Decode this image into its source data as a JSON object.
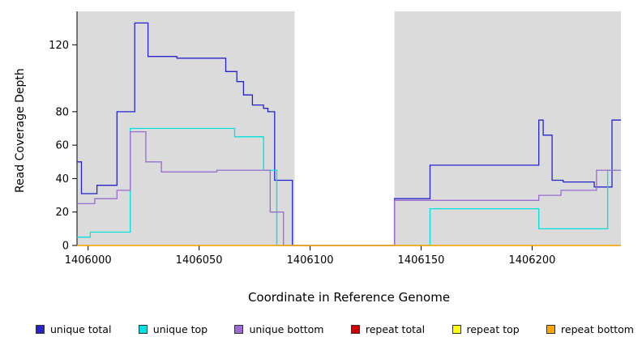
{
  "figure": {
    "y_axis_label": "Read Coverage Depth",
    "x_axis_label": "Coordinate in Reference Genome"
  },
  "legend": {
    "items": [
      {
        "label": "unique total",
        "color": "#2424CC"
      },
      {
        "label": "unique top",
        "color": "#00E0E0"
      },
      {
        "label": "unique bottom",
        "color": "#9A6BD0"
      },
      {
        "label": "repeat total",
        "color": "#CC0000"
      },
      {
        "label": "repeat top",
        "color": "#FFFF00"
      },
      {
        "label": "repeat bottom",
        "color": "#FFA500"
      }
    ]
  },
  "chart_data": {
    "type": "line",
    "title": "",
    "xlabel": "Coordinate in Reference Genome",
    "ylabel": "Read Coverage Depth",
    "xlim": [
      1405995,
      1406240
    ],
    "ylim": [
      0,
      140
    ],
    "x_ticks": [
      1406000,
      1406050,
      1406100,
      1406150,
      1406200
    ],
    "y_ticks": [
      0,
      20,
      40,
      60,
      80,
      120
    ],
    "grid": false,
    "legend_position": "bottom",
    "plot_background": "#DBDBDB",
    "gap_region": {
      "x_start": 1406093,
      "x_end": 1406138,
      "color": "#FFFFFF"
    },
    "series": [
      {
        "name": "unique total",
        "color": "#2424CC",
        "points": [
          [
            1405995,
            50
          ],
          [
            1405997,
            50
          ],
          [
            1405997,
            31
          ],
          [
            1406004,
            31
          ],
          [
            1406004,
            36
          ],
          [
            1406013,
            36
          ],
          [
            1406013,
            80
          ],
          [
            1406021,
            80
          ],
          [
            1406021,
            133
          ],
          [
            1406027,
            133
          ],
          [
            1406027,
            113
          ],
          [
            1406040,
            113
          ],
          [
            1406040,
            112
          ],
          [
            1406062,
            112
          ],
          [
            1406062,
            104
          ],
          [
            1406067,
            104
          ],
          [
            1406067,
            98
          ],
          [
            1406070,
            98
          ],
          [
            1406070,
            90
          ],
          [
            1406074,
            90
          ],
          [
            1406074,
            84
          ],
          [
            1406079,
            84
          ],
          [
            1406079,
            82
          ],
          [
            1406081,
            82
          ],
          [
            1406081,
            80
          ],
          [
            1406084,
            80
          ],
          [
            1406084,
            39
          ],
          [
            1406092,
            39
          ],
          [
            1406092,
            0
          ],
          [
            1406138,
            0
          ],
          [
            1406138,
            28
          ],
          [
            1406154,
            28
          ],
          [
            1406154,
            48
          ],
          [
            1406203,
            48
          ],
          [
            1406203,
            75
          ],
          [
            1406205,
            75
          ],
          [
            1406205,
            66
          ],
          [
            1406209,
            66
          ],
          [
            1406209,
            39
          ],
          [
            1406214,
            39
          ],
          [
            1406214,
            38
          ],
          [
            1406228,
            38
          ],
          [
            1406228,
            35
          ],
          [
            1406236,
            35
          ],
          [
            1406236,
            75
          ],
          [
            1406240,
            75
          ]
        ]
      },
      {
        "name": "unique top",
        "color": "#00E0E0",
        "points": [
          [
            1405995,
            5
          ],
          [
            1406001,
            5
          ],
          [
            1406001,
            8
          ],
          [
            1406019,
            8
          ],
          [
            1406019,
            70
          ],
          [
            1406066,
            70
          ],
          [
            1406066,
            65
          ],
          [
            1406079,
            65
          ],
          [
            1406079,
            45
          ],
          [
            1406085,
            45
          ],
          [
            1406085,
            0
          ],
          [
            1406154,
            0
          ],
          [
            1406154,
            22
          ],
          [
            1406203,
            22
          ],
          [
            1406203,
            10
          ],
          [
            1406234,
            10
          ],
          [
            1406234,
            45
          ],
          [
            1406240,
            45
          ]
        ]
      },
      {
        "name": "unique bottom",
        "color": "#9A6BD0",
        "points": [
          [
            1405995,
            25
          ],
          [
            1406003,
            25
          ],
          [
            1406003,
            28
          ],
          [
            1406013,
            28
          ],
          [
            1406013,
            33
          ],
          [
            1406019,
            33
          ],
          [
            1406019,
            68
          ],
          [
            1406026,
            68
          ],
          [
            1406026,
            50
          ],
          [
            1406033,
            50
          ],
          [
            1406033,
            44
          ],
          [
            1406058,
            44
          ],
          [
            1406058,
            45
          ],
          [
            1406082,
            45
          ],
          [
            1406082,
            20
          ],
          [
            1406088,
            20
          ],
          [
            1406088,
            0
          ],
          [
            1406138,
            0
          ],
          [
            1406138,
            27
          ],
          [
            1406203,
            27
          ],
          [
            1406203,
            30
          ],
          [
            1406213,
            30
          ],
          [
            1406213,
            33
          ],
          [
            1406229,
            33
          ],
          [
            1406229,
            45
          ],
          [
            1406240,
            45
          ]
        ]
      },
      {
        "name": "repeat total",
        "color": "#CC0000",
        "points": [
          [
            1405995,
            0
          ],
          [
            1406240,
            0
          ]
        ]
      },
      {
        "name": "repeat top",
        "color": "#FFFF00",
        "points": [
          [
            1405995,
            0
          ],
          [
            1406240,
            0
          ]
        ]
      },
      {
        "name": "repeat bottom",
        "color": "#FFA500",
        "points": [
          [
            1405995,
            0
          ],
          [
            1406240,
            0
          ]
        ]
      }
    ]
  }
}
